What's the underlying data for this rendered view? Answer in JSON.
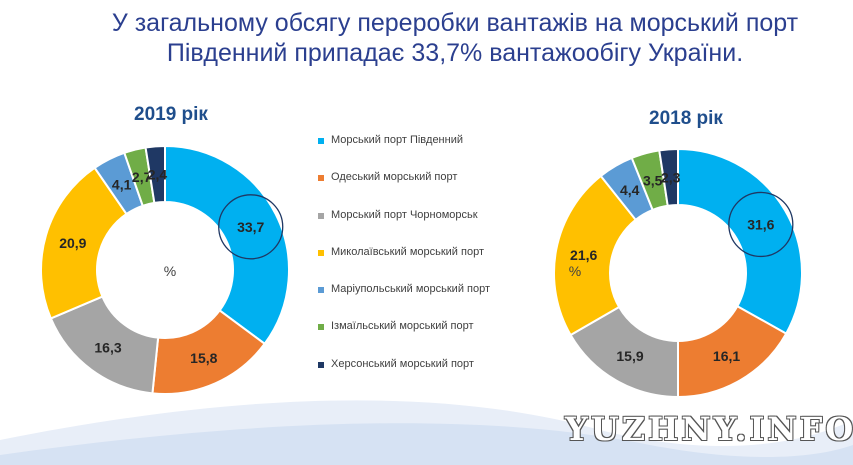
{
  "title": "У загальному обсягу переробки вантажів на морський порт Південний припадає 33,7% вантажообігу України.",
  "watermark": "YUZHNY.INFO",
  "legend": [
    {
      "label": "Морський порт Південний",
      "color": "#00b0f0"
    },
    {
      "label": "Одеський морський порт",
      "color": "#ed7d31"
    },
    {
      "label": "Морський порт Чорноморськ",
      "color": "#a5a5a5"
    },
    {
      "label": "Миколаївський морський порт",
      "color": "#ffc000"
    },
    {
      "label": "Маріупольський морський порт",
      "color": "#5b9bd5"
    },
    {
      "label": "Ізмаїльський морський порт",
      "color": "#70ad47"
    },
    {
      "label": "Херсонський морський порт",
      "color": "#1f3864"
    }
  ],
  "chart_data": [
    {
      "type": "pie",
      "title": "2019 рік",
      "center_label": "%",
      "categories": [
        "Морський порт Південний",
        "Одеський морський порт",
        "Морський порт Чорноморськ",
        "Миколаївський морський порт",
        "Маріупольський морський порт",
        "Ізмаїльський морський порт",
        "Херсонський морський порт"
      ],
      "values": [
        33.7,
        15.8,
        16.3,
        20.9,
        4.1,
        2.7,
        2.4
      ],
      "value_labels": [
        "33,7",
        "15,8",
        "16,3",
        "20,9",
        "4,1",
        "2,7",
        "2,4"
      ],
      "colors": [
        "#00b0f0",
        "#ed7d31",
        "#a5a5a5",
        "#ffc000",
        "#5b9bd5",
        "#70ad47",
        "#1f3864"
      ],
      "highlighted_index": 0
    },
    {
      "type": "pie",
      "title": "2018 рік",
      "center_label": "%",
      "categories": [
        "Морський порт Південний",
        "Одеський морський порт",
        "Морський порт Чорноморськ",
        "Миколаївський морський порт",
        "Маріупольський морський порт",
        "Ізмаїльський морський порт",
        "Херсонський морський порт"
      ],
      "values": [
        31.6,
        16.1,
        15.9,
        21.6,
        4.4,
        3.5,
        2.3
      ],
      "value_labels": [
        "31,6",
        "16,1",
        "15,9",
        "21,6",
        "4,4",
        "3,5",
        "2,3"
      ],
      "colors": [
        "#00b0f0",
        "#ed7d31",
        "#a5a5a5",
        "#ffc000",
        "#5b9bd5",
        "#70ad47",
        "#1f3864"
      ],
      "highlighted_index": 0
    }
  ]
}
